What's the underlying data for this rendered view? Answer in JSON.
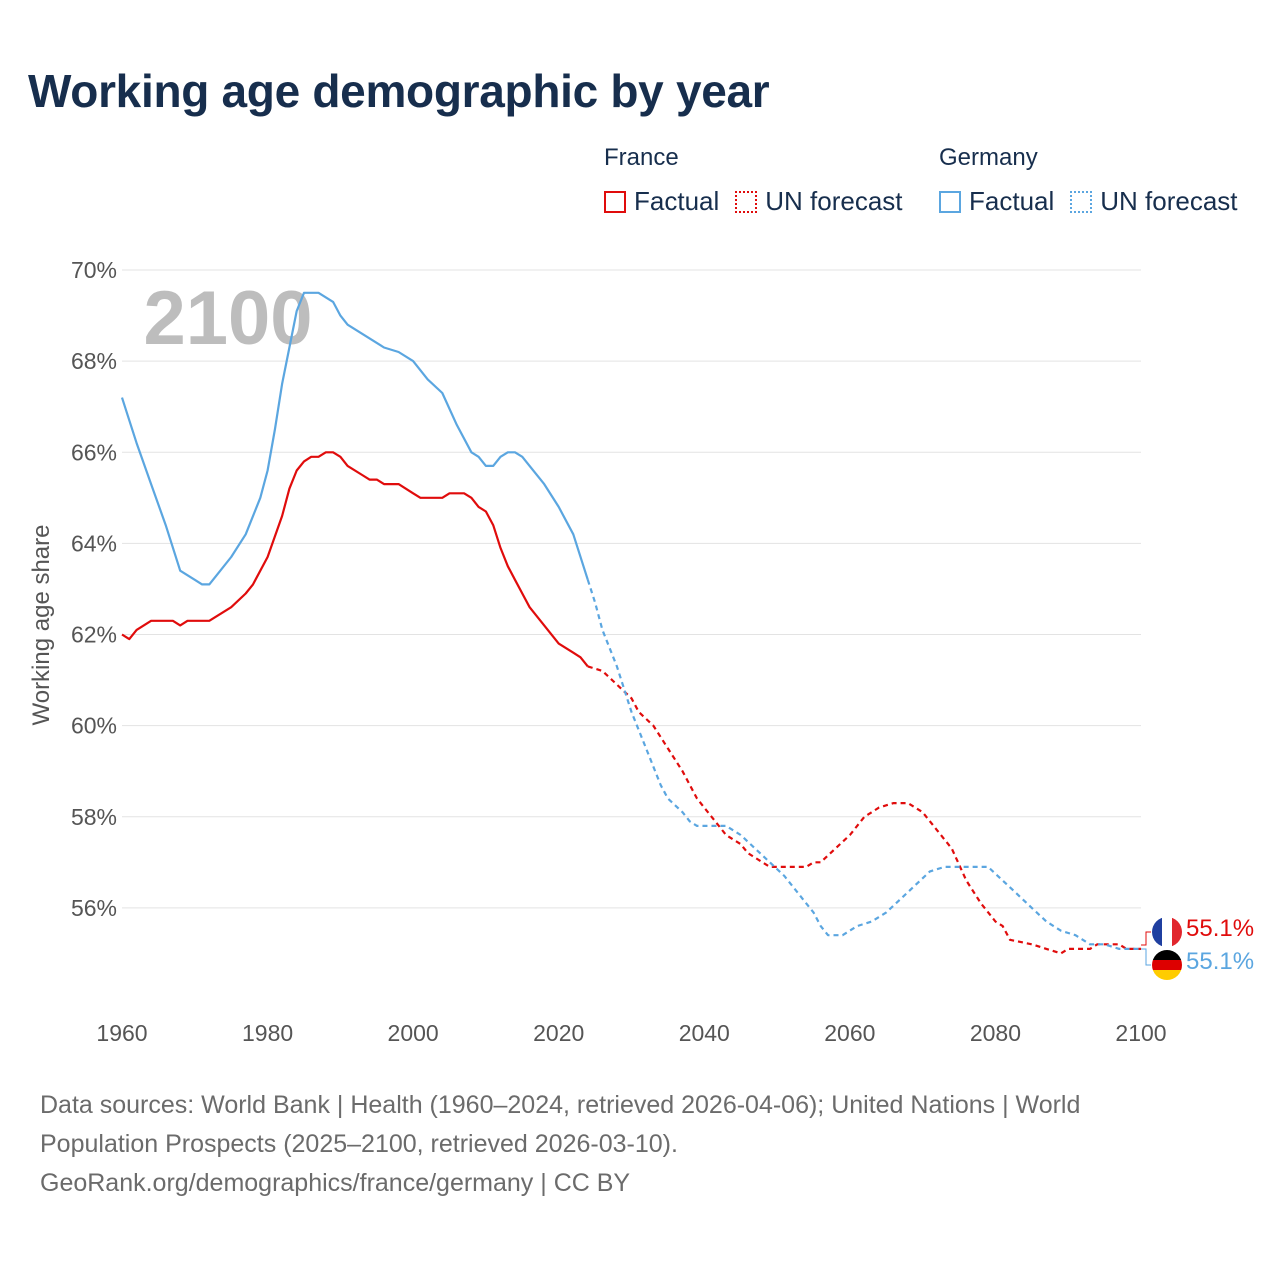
{
  "title": "Working age demographic by year",
  "legend": {
    "groups": [
      {
        "name": "France",
        "factual": "Factual",
        "forecast": "UN forecast"
      },
      {
        "name": "Germany",
        "factual": "Factual",
        "forecast": "UN forecast"
      }
    ]
  },
  "colors": {
    "france": "#e00c0c",
    "germany": "#5ba6e0",
    "grid": "#e3e3e3",
    "axis_text": "#555555"
  },
  "year_overlay": "2100",
  "end_labels": {
    "france": "55.1%",
    "germany": "55.1%"
  },
  "footer": {
    "line1": "Data sources: World Bank | Health (1960–2024, retrieved 2026-04-06); United Nations | World Population Prospects (2025–2100, retrieved 2026-03-10).",
    "line2": "GeoRank.org/demographics/france/germany | CC BY"
  },
  "chart_data": {
    "type": "line",
    "title": "Working age demographic by year",
    "xlabel": "",
    "ylabel": "Working age share",
    "xlim": [
      1960,
      2100
    ],
    "ylim": [
      54,
      70
    ],
    "x_ticks": [
      1960,
      1980,
      2000,
      2020,
      2040,
      2060,
      2080,
      2100
    ],
    "x_tick_labels": [
      "1960",
      "1980",
      "2000",
      "2020",
      "2040",
      "2060",
      "2080",
      "2100"
    ],
    "y_ticks": [
      56,
      58,
      60,
      62,
      64,
      66,
      68,
      70
    ],
    "y_tick_labels": [
      "56%",
      "58%",
      "60%",
      "62%",
      "64%",
      "66%",
      "68%",
      "70%"
    ],
    "factual_end_year": 2024,
    "series": [
      {
        "name": "France",
        "key": "france",
        "points": [
          [
            1960,
            62.0
          ],
          [
            1961,
            61.9
          ],
          [
            1962,
            62.1
          ],
          [
            1964,
            62.3
          ],
          [
            1967,
            62.3
          ],
          [
            1968,
            62.2
          ],
          [
            1969,
            62.3
          ],
          [
            1972,
            62.3
          ],
          [
            1975,
            62.6
          ],
          [
            1977,
            62.9
          ],
          [
            1978,
            63.1
          ],
          [
            1980,
            63.7
          ],
          [
            1982,
            64.6
          ],
          [
            1983,
            65.2
          ],
          [
            1984,
            65.6
          ],
          [
            1985,
            65.8
          ],
          [
            1986,
            65.9
          ],
          [
            1987,
            65.9
          ],
          [
            1988,
            66.0
          ],
          [
            1989,
            66.0
          ],
          [
            1990,
            65.9
          ],
          [
            1991,
            65.7
          ],
          [
            1993,
            65.5
          ],
          [
            1994,
            65.4
          ],
          [
            1995,
            65.4
          ],
          [
            1996,
            65.3
          ],
          [
            1998,
            65.3
          ],
          [
            2000,
            65.1
          ],
          [
            2001,
            65.0
          ],
          [
            2004,
            65.0
          ],
          [
            2005,
            65.1
          ],
          [
            2007,
            65.1
          ],
          [
            2008,
            65.0
          ],
          [
            2009,
            64.8
          ],
          [
            2010,
            64.7
          ],
          [
            2011,
            64.4
          ],
          [
            2012,
            63.9
          ],
          [
            2013,
            63.5
          ],
          [
            2014,
            63.2
          ],
          [
            2015,
            62.9
          ],
          [
            2016,
            62.6
          ],
          [
            2018,
            62.2
          ],
          [
            2020,
            61.8
          ],
          [
            2022,
            61.6
          ],
          [
            2023,
            61.5
          ],
          [
            2024,
            61.3
          ],
          [
            2026,
            61.2
          ],
          [
            2028,
            60.9
          ],
          [
            2030,
            60.6
          ],
          [
            2031,
            60.3
          ],
          [
            2033,
            60.0
          ],
          [
            2035,
            59.5
          ],
          [
            2037,
            59.0
          ],
          [
            2039,
            58.4
          ],
          [
            2041,
            58.0
          ],
          [
            2043,
            57.6
          ],
          [
            2045,
            57.4
          ],
          [
            2046,
            57.2
          ],
          [
            2048,
            57.0
          ],
          [
            2049,
            56.9
          ],
          [
            2054,
            56.9
          ],
          [
            2055,
            57.0
          ],
          [
            2056,
            57.0
          ],
          [
            2058,
            57.3
          ],
          [
            2060,
            57.6
          ],
          [
            2062,
            58.0
          ],
          [
            2064,
            58.2
          ],
          [
            2066,
            58.3
          ],
          [
            2068,
            58.3
          ],
          [
            2070,
            58.1
          ],
          [
            2072,
            57.7
          ],
          [
            2074,
            57.3
          ],
          [
            2076,
            56.6
          ],
          [
            2078,
            56.1
          ],
          [
            2080,
            55.7
          ],
          [
            2081,
            55.6
          ],
          [
            2082,
            55.3
          ],
          [
            2085,
            55.2
          ],
          [
            2087,
            55.1
          ],
          [
            2089,
            55.0
          ],
          [
            2090,
            55.1
          ],
          [
            2093,
            55.1
          ],
          [
            2094,
            55.2
          ],
          [
            2097,
            55.2
          ],
          [
            2098,
            55.1
          ],
          [
            2100,
            55.1
          ]
        ]
      },
      {
        "name": "Germany",
        "key": "germany",
        "points": [
          [
            1960,
            67.2
          ],
          [
            1962,
            66.2
          ],
          [
            1964,
            65.3
          ],
          [
            1966,
            64.4
          ],
          [
            1968,
            63.4
          ],
          [
            1970,
            63.2
          ],
          [
            1971,
            63.1
          ],
          [
            1972,
            63.1
          ],
          [
            1973,
            63.3
          ],
          [
            1975,
            63.7
          ],
          [
            1977,
            64.2
          ],
          [
            1979,
            65.0
          ],
          [
            1980,
            65.6
          ],
          [
            1981,
            66.5
          ],
          [
            1982,
            67.5
          ],
          [
            1983,
            68.3
          ],
          [
            1984,
            69.1
          ],
          [
            1985,
            69.5
          ],
          [
            1986,
            69.5
          ],
          [
            1987,
            69.5
          ],
          [
            1989,
            69.3
          ],
          [
            1990,
            69.0
          ],
          [
            1991,
            68.8
          ],
          [
            1993,
            68.6
          ],
          [
            1995,
            68.4
          ],
          [
            1996,
            68.3
          ],
          [
            1998,
            68.2
          ],
          [
            2000,
            68.0
          ],
          [
            2002,
            67.6
          ],
          [
            2004,
            67.3
          ],
          [
            2006,
            66.6
          ],
          [
            2008,
            66.0
          ],
          [
            2009,
            65.9
          ],
          [
            2010,
            65.7
          ],
          [
            2011,
            65.7
          ],
          [
            2012,
            65.9
          ],
          [
            2013,
            66.0
          ],
          [
            2014,
            66.0
          ],
          [
            2015,
            65.9
          ],
          [
            2016,
            65.7
          ],
          [
            2018,
            65.3
          ],
          [
            2020,
            64.8
          ],
          [
            2022,
            64.2
          ],
          [
            2024,
            63.2
          ],
          [
            2025,
            62.7
          ],
          [
            2026,
            62.1
          ],
          [
            2028,
            61.3
          ],
          [
            2030,
            60.3
          ],
          [
            2032,
            59.5
          ],
          [
            2034,
            58.7
          ],
          [
            2035,
            58.4
          ],
          [
            2037,
            58.1
          ],
          [
            2038,
            57.9
          ],
          [
            2039,
            57.8
          ],
          [
            2041,
            57.8
          ],
          [
            2043,
            57.8
          ],
          [
            2045,
            57.6
          ],
          [
            2047,
            57.3
          ],
          [
            2049,
            57.0
          ],
          [
            2051,
            56.7
          ],
          [
            2053,
            56.3
          ],
          [
            2055,
            55.9
          ],
          [
            2056,
            55.6
          ],
          [
            2057,
            55.4
          ],
          [
            2059,
            55.4
          ],
          [
            2061,
            55.6
          ],
          [
            2063,
            55.7
          ],
          [
            2065,
            55.9
          ],
          [
            2067,
            56.2
          ],
          [
            2069,
            56.5
          ],
          [
            2071,
            56.8
          ],
          [
            2073,
            56.9
          ],
          [
            2076,
            56.9
          ],
          [
            2079,
            56.9
          ],
          [
            2081,
            56.6
          ],
          [
            2083,
            56.3
          ],
          [
            2085,
            56.0
          ],
          [
            2087,
            55.7
          ],
          [
            2089,
            55.5
          ],
          [
            2091,
            55.4
          ],
          [
            2093,
            55.2
          ],
          [
            2095,
            55.2
          ],
          [
            2097,
            55.1
          ],
          [
            2100,
            55.1
          ]
        ]
      }
    ]
  }
}
